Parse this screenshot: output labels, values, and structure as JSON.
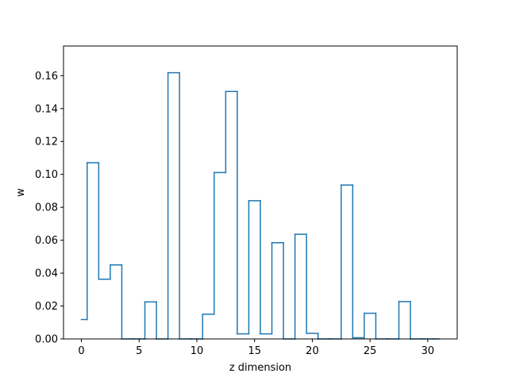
{
  "chart_data": {
    "type": "step",
    "title": "",
    "xlabel": "z dimension",
    "ylabel": "w",
    "xlim": [
      -1.55,
      32.55
    ],
    "ylim": [
      0,
      0.178
    ],
    "x_ticks": [
      0,
      5,
      10,
      15,
      20,
      25,
      30
    ],
    "x_tick_labels": [
      "0",
      "5",
      "10",
      "15",
      "20",
      "25",
      "30"
    ],
    "y_ticks": [
      0.0,
      0.02,
      0.04,
      0.06,
      0.08,
      0.1,
      0.12,
      0.14,
      0.16
    ],
    "y_tick_labels": [
      "0.00",
      "0.02",
      "0.04",
      "0.06",
      "0.08",
      "0.10",
      "0.12",
      "0.14",
      "0.16"
    ],
    "grid": false,
    "color": "#1f77b4",
    "step_where": "mid",
    "x": [
      0,
      1,
      2,
      3,
      4,
      5,
      6,
      7,
      8,
      9,
      10,
      11,
      12,
      13,
      14,
      15,
      16,
      17,
      18,
      19,
      20,
      21,
      22,
      23,
      24,
      25,
      26,
      27,
      28,
      29,
      30,
      31
    ],
    "values": [
      0.0118,
      0.1071,
      0.0363,
      0.045,
      0.0,
      0.0,
      0.0225,
      0.0,
      0.1618,
      0.0,
      0.0,
      0.015,
      0.1011,
      0.1504,
      0.0031,
      0.084,
      0.0031,
      0.0585,
      0.0,
      0.0636,
      0.0034,
      0.0,
      0.0,
      0.0935,
      0.0007,
      0.0156,
      0.0,
      0.0,
      0.0227,
      0.0,
      0.0,
      0.0
    ]
  }
}
